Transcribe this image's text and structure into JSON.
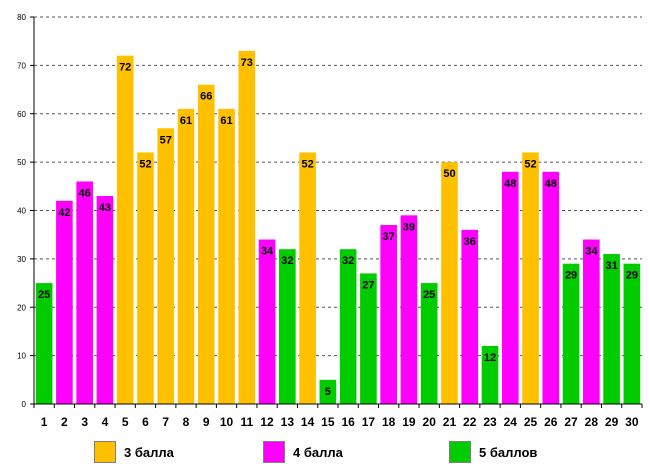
{
  "chart_data": {
    "type": "bar",
    "title": "",
    "xlabel": "",
    "ylabel": "",
    "ylim": [
      0,
      80
    ],
    "yticks": [
      0,
      10,
      20,
      30,
      40,
      50,
      60,
      70,
      80
    ],
    "grid": true,
    "legend_position": "bottom",
    "categories": [
      "1",
      "2",
      "3",
      "4",
      "5",
      "6",
      "7",
      "8",
      "9",
      "10",
      "11",
      "12",
      "13",
      "14",
      "15",
      "16",
      "17",
      "18",
      "19",
      "20",
      "21",
      "22",
      "23",
      "24",
      "25",
      "26",
      "27",
      "28",
      "29",
      "30"
    ],
    "values": [
      25,
      42,
      46,
      43,
      72,
      52,
      57,
      61,
      66,
      61,
      73,
      34,
      32,
      52,
      5,
      32,
      27,
      37,
      39,
      25,
      50,
      36,
      12,
      48,
      52,
      48,
      29,
      34,
      31,
      29
    ],
    "groups": [
      "5",
      "4",
      "4",
      "4",
      "3",
      "3",
      "3",
      "3",
      "3",
      "3",
      "3",
      "4",
      "5",
      "3",
      "5",
      "5",
      "5",
      "4",
      "4",
      "5",
      "3",
      "4",
      "5",
      "4",
      "3",
      "4",
      "5",
      "4",
      "5",
      "5"
    ],
    "series": [
      {
        "key": "3",
        "name": "3 балла",
        "color": "#ffc000"
      },
      {
        "key": "4",
        "name": "4 балла",
        "color": "#ff00ff"
      },
      {
        "key": "5",
        "name": "5 баллов",
        "color": "#00cc00"
      }
    ]
  }
}
